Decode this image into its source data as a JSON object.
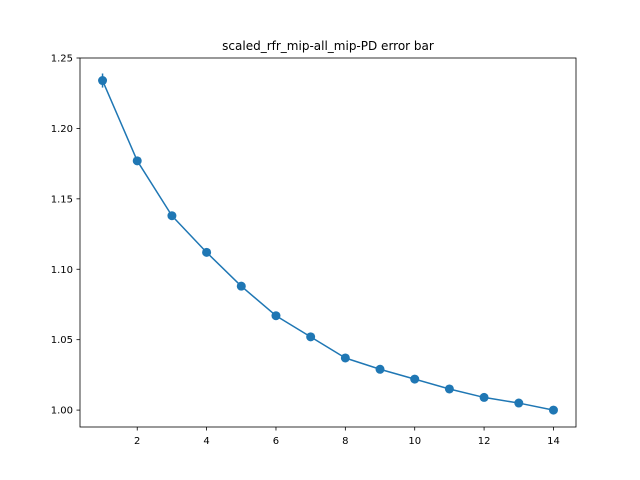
{
  "chart_data": {
    "type": "line",
    "title": "scaled_rfr_mip-all_mip-PD error bar",
    "xlabel": "",
    "ylabel": "",
    "xlim": [
      0.35,
      14.65
    ],
    "ylim": [
      0.988,
      1.25
    ],
    "x_ticks": [
      2,
      4,
      6,
      8,
      10,
      12,
      14
    ],
    "x_tick_labels": [
      "2",
      "4",
      "6",
      "8",
      "10",
      "12",
      "14"
    ],
    "y_ticks": [
      1.0,
      1.05,
      1.1,
      1.15,
      1.2,
      1.25
    ],
    "y_tick_labels": [
      "1.00",
      "1.05",
      "1.10",
      "1.15",
      "1.20",
      "1.25"
    ],
    "grid": false,
    "color": "#1f77b4",
    "series": [
      {
        "x": [
          1,
          2,
          3,
          4,
          5,
          6,
          7,
          8,
          9,
          10,
          11,
          12,
          13,
          14
        ],
        "values": [
          1.234,
          1.177,
          1.138,
          1.112,
          1.088,
          1.067,
          1.052,
          1.037,
          1.029,
          1.022,
          1.015,
          1.009,
          1.005,
          1.0
        ],
        "errors": [
          0.005,
          0.002,
          0.0015,
          0.0015,
          0.001,
          0.001,
          0.001,
          0.001,
          0.001,
          0.001,
          0.001,
          0.001,
          0.001,
          0.0005
        ]
      }
    ]
  }
}
